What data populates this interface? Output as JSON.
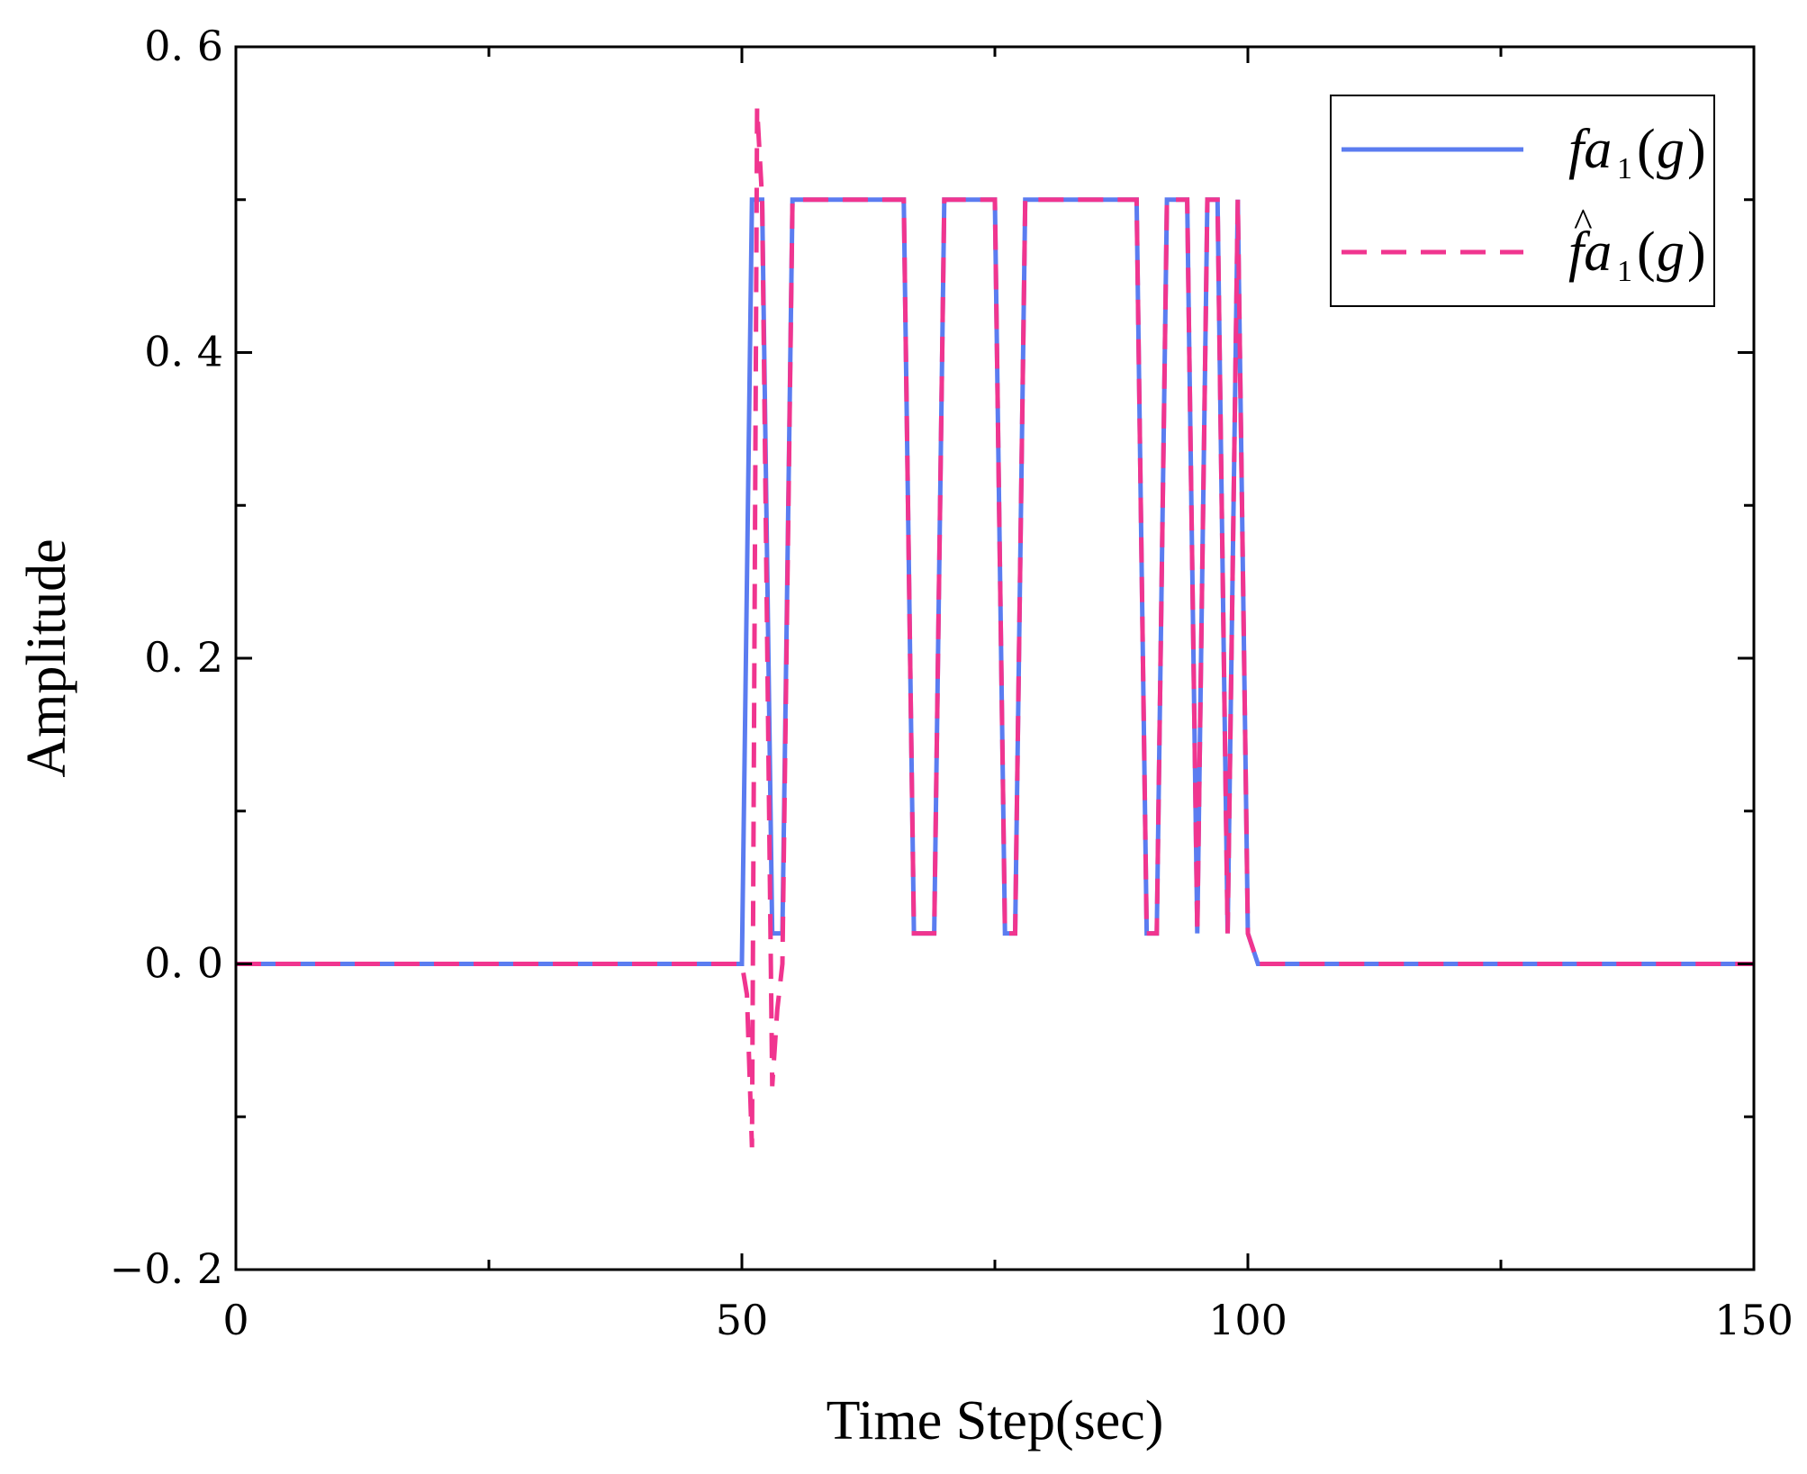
{
  "chart_data": {
    "type": "line",
    "title": "",
    "xlabel": "Time Step(sec)",
    "ylabel": "Amplitude",
    "xlim": [
      0,
      150
    ],
    "ylim": [
      -0.2,
      0.6
    ],
    "xticks": [
      0,
      50,
      100,
      150
    ],
    "xtick_labels": [
      "0",
      "50",
      "100",
      "150"
    ],
    "yticks": [
      -0.2,
      0.0,
      0.2,
      0.4,
      0.6
    ],
    "ytick_labels": [
      "−0. 2",
      "0. 0",
      "0. 2",
      "0. 4",
      "0. 6"
    ],
    "grid": false,
    "legend_position": "top-right",
    "series": [
      {
        "name": "fa₁(g)",
        "color": "#5b7cf0",
        "style": "solid",
        "x": [
          0,
          50,
          51,
          52,
          53,
          54,
          55,
          66,
          67,
          69,
          70,
          75,
          76,
          77,
          78,
          89,
          90,
          91,
          92,
          94,
          95,
          96,
          97,
          98,
          99,
          100,
          101,
          150
        ],
        "y": [
          0,
          0,
          0.5,
          0.5,
          0.02,
          0.02,
          0.5,
          0.5,
          0.02,
          0.02,
          0.5,
          0.5,
          0.02,
          0.02,
          0.5,
          0.5,
          0.02,
          0.02,
          0.5,
          0.5,
          0.02,
          0.5,
          0.5,
          0.02,
          0.5,
          0.02,
          0,
          0
        ]
      },
      {
        "name": "f̂a₁(g)",
        "color": "#f0358f",
        "style": "dashed",
        "x": [
          0,
          50,
          50.5,
          51,
          51.5,
          52,
          53,
          53.5,
          54,
          55,
          66,
          67,
          69,
          70,
          75,
          76,
          77,
          78,
          89,
          90,
          91,
          92,
          94,
          95,
          96,
          97,
          98,
          99,
          100,
          101,
          150
        ],
        "y": [
          0,
          0,
          -0.02,
          -0.12,
          0.56,
          0.5,
          -0.08,
          -0.03,
          0,
          0.5,
          0.5,
          0.02,
          0.02,
          0.5,
          0.5,
          0.02,
          0.02,
          0.5,
          0.5,
          0.02,
          0.02,
          0.5,
          0.5,
          0.02,
          0.5,
          0.5,
          0.02,
          0.5,
          0.02,
          0,
          0
        ]
      }
    ]
  }
}
